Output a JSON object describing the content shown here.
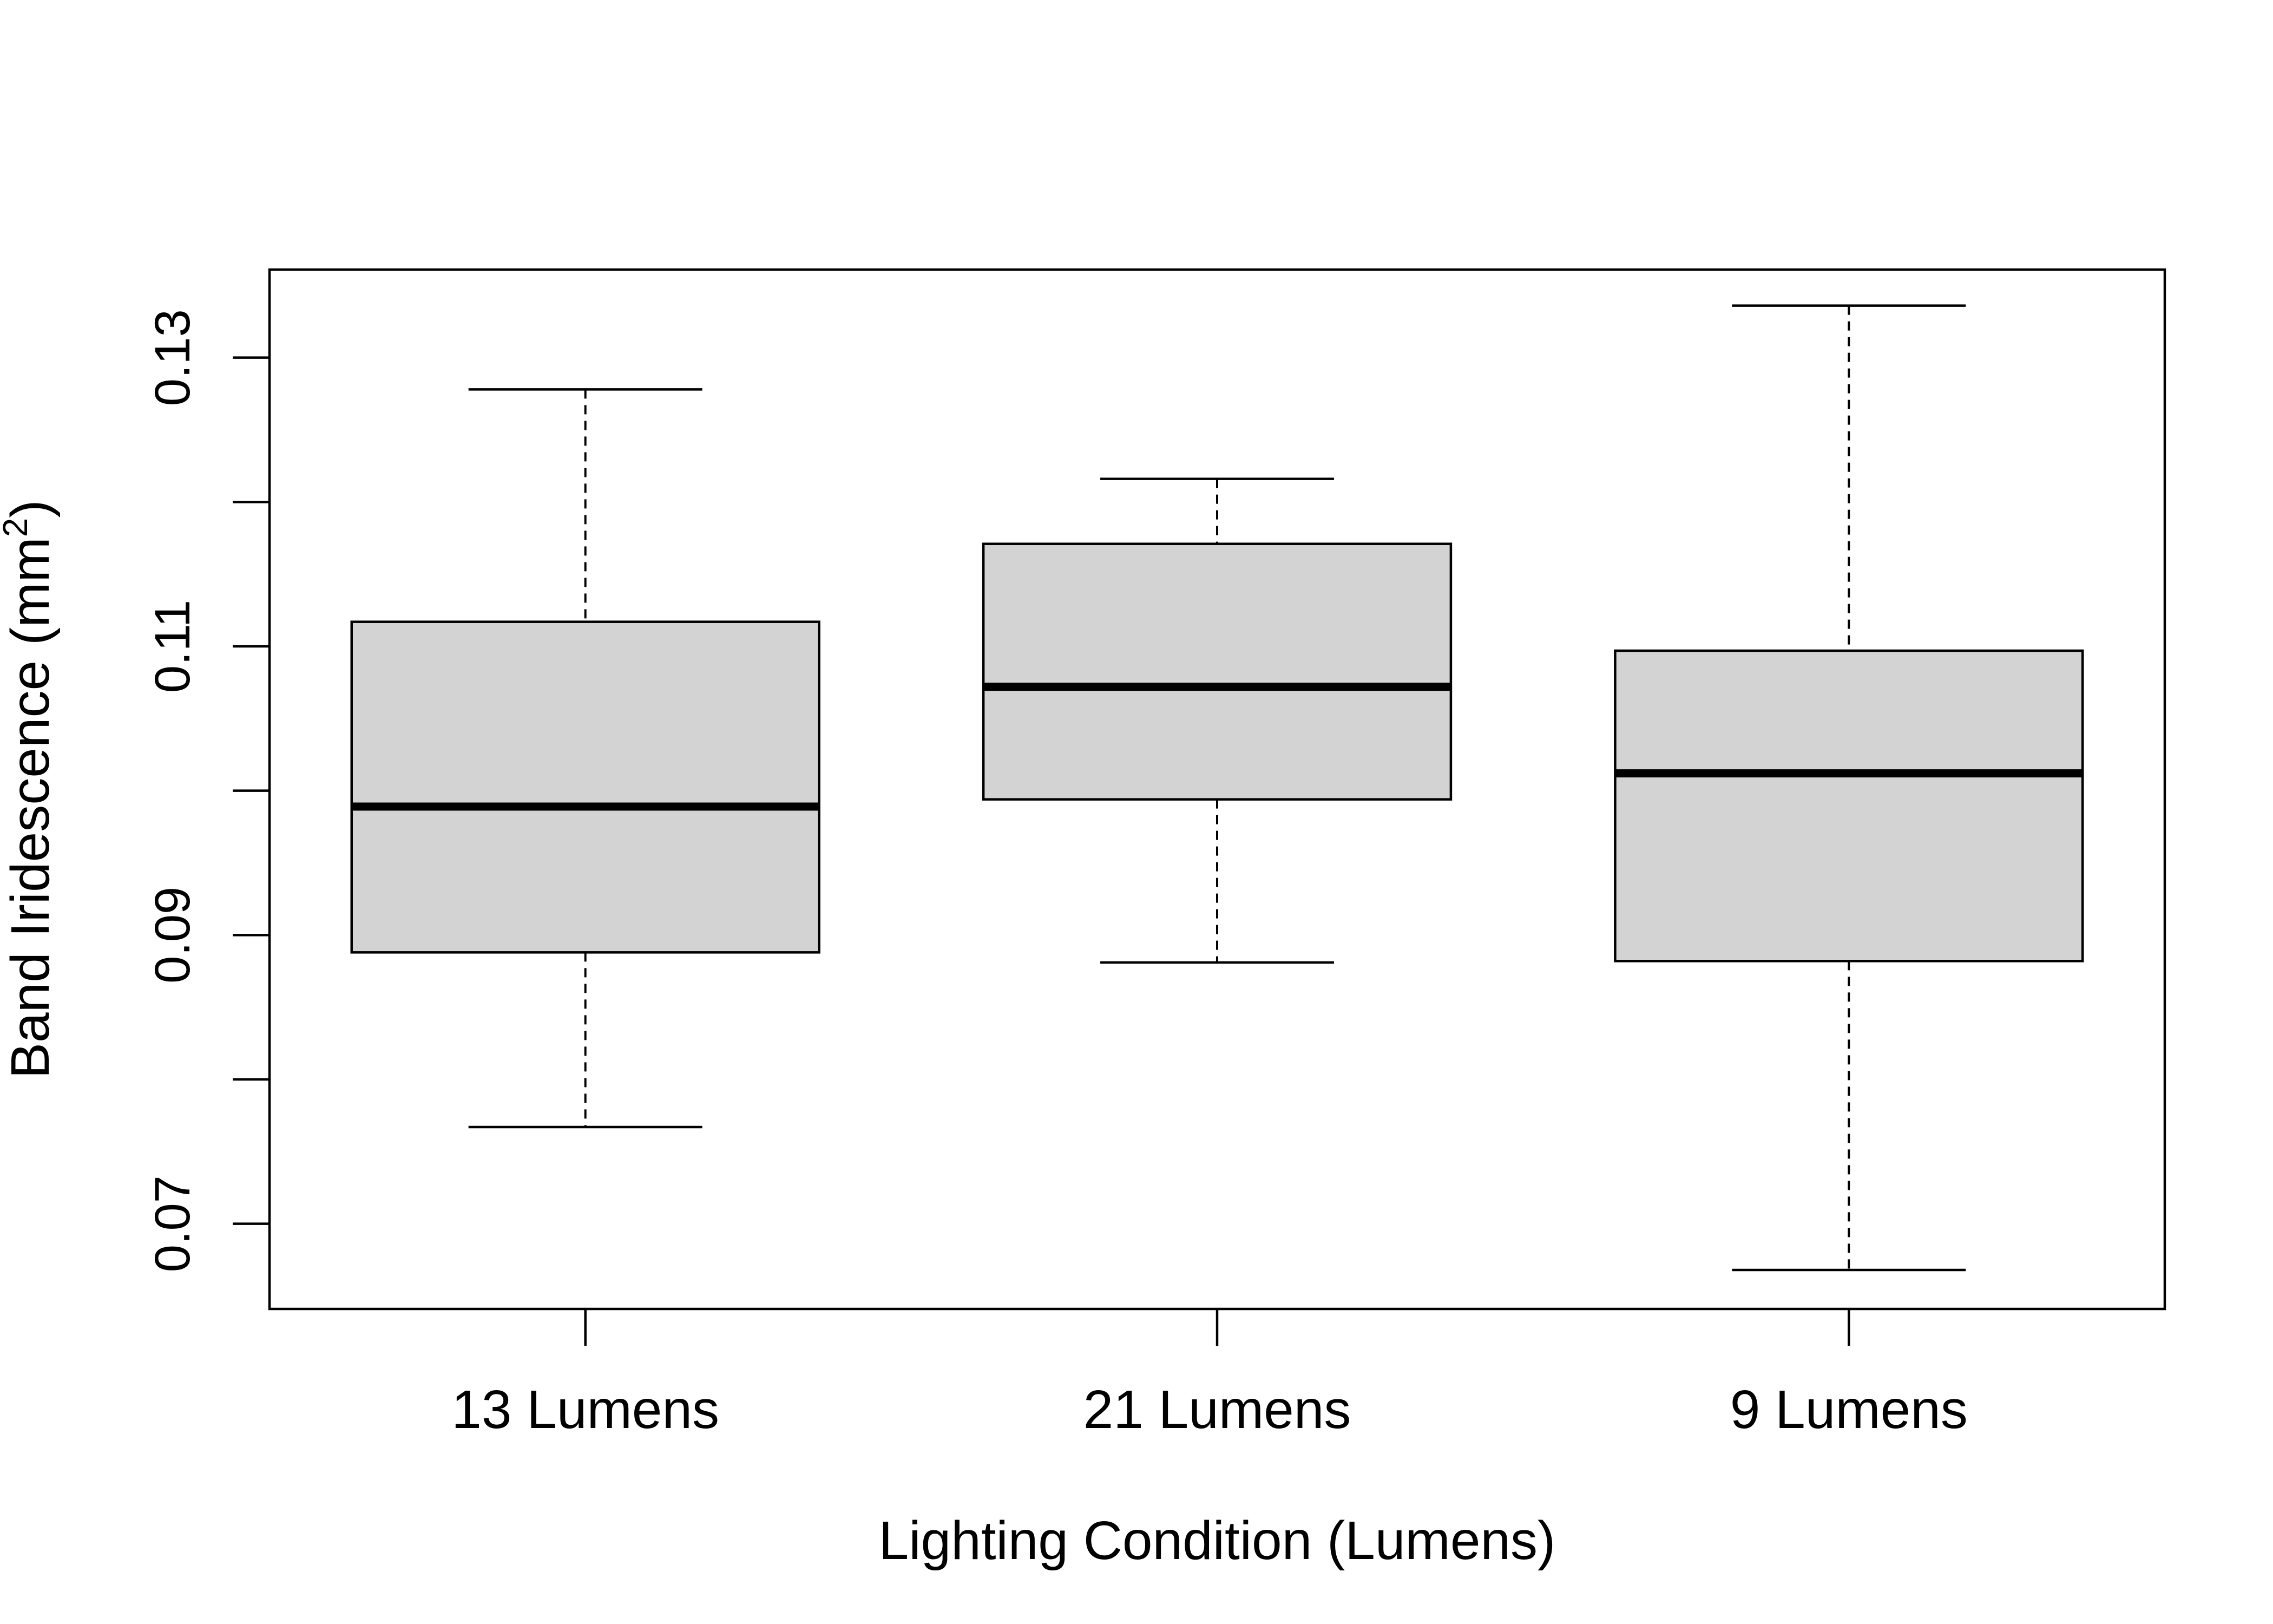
{
  "chart_data": {
    "type": "box",
    "title": "",
    "xlabel": "Lighting Condition (Lumens)",
    "ylabel": {
      "text": "Band Iridescence (mm",
      "superscript": "2",
      "suffix": ")"
    },
    "ylim": [
      0.0641,
      0.1361
    ],
    "yticks": [
      0.07,
      0.08,
      0.09,
      0.1,
      0.11,
      0.12,
      0.13
    ],
    "yticklabels": [
      "0.07",
      "",
      "0.09",
      "",
      "0.11",
      "",
      "0.13"
    ],
    "categories": [
      "13 Lumens",
      "21 Lumens",
      "9 Lumens"
    ],
    "boxes": [
      {
        "category": "13 Lumens",
        "whisker_low": 0.0767,
        "q1": 0.0888,
        "median": 0.0989,
        "q3": 0.1117,
        "whisker_high": 0.1278
      },
      {
        "category": "21 Lumens",
        "whisker_low": 0.0881,
        "q1": 0.0994,
        "median": 0.1072,
        "q3": 0.1171,
        "whisker_high": 0.1216
      },
      {
        "category": "9 Lumens",
        "whisker_low": 0.0668,
        "q1": 0.0882,
        "median": 0.1012,
        "q3": 0.1097,
        "whisker_high": 0.1336
      }
    ],
    "box_fill": "#d3d3d3",
    "line_color": "#000000",
    "grid": false,
    "legend": "none"
  }
}
